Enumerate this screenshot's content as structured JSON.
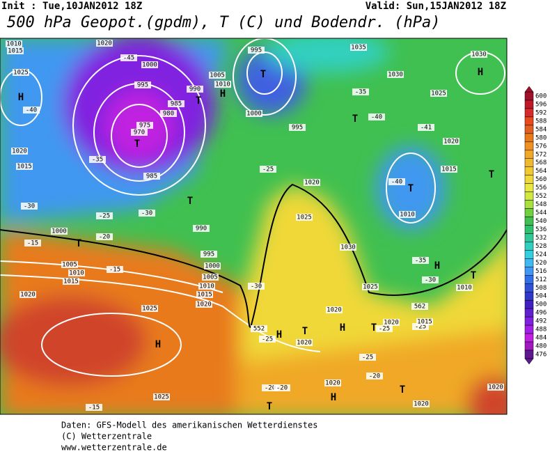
{
  "header": {
    "init": "Init : Tue,10JAN2012 18Z",
    "valid": "Valid: Sun,15JAN2012 18Z",
    "title": "500 hPa Geopot.(gpdm), T (C) und Bodendr. (hPa)"
  },
  "map_labels": [
    "1010",
    "1015",
    "1020",
    "1025",
    "H",
    "-40",
    "1000",
    "995",
    "-45",
    "975",
    "970",
    "T",
    "980",
    "985",
    "990",
    "T",
    "1005",
    "1010",
    "H",
    "995",
    "T",
    "1000",
    "995",
    "1035",
    "1030",
    "1025",
    "H",
    "1030",
    "-35",
    "T",
    "-40",
    "-41",
    "1020",
    "1015",
    "T",
    "T",
    "-40",
    "1010",
    "-25",
    "1020",
    "1025",
    "T",
    "990",
    "-30",
    "-25",
    "1020",
    "1015",
    "-30",
    "-35",
    "985",
    "-20",
    "-15",
    "1000",
    "T",
    "1005",
    "1010",
    "1015",
    "-15",
    "1020",
    "1025",
    "H",
    "995",
    "1000",
    "1005",
    "1010",
    "1015",
    "1020",
    "-30",
    "552",
    "H",
    "-25",
    "T",
    "1020",
    "H",
    "T",
    "1020",
    "-25",
    "1020",
    "-25",
    "1015",
    "1030",
    "H",
    "T",
    "1010",
    "-30",
    "-35",
    "1025",
    "562",
    "-25",
    "-20",
    "1020",
    "T",
    "1020",
    "1020",
    "H",
    "1025",
    "-15",
    "-20",
    "-20",
    "T"
  ],
  "legend": {
    "values": [
      600,
      596,
      592,
      588,
      584,
      580,
      576,
      572,
      568,
      564,
      560,
      556,
      552,
      548,
      544,
      540,
      536,
      532,
      528,
      524,
      520,
      516,
      512,
      508,
      504,
      500,
      496,
      492,
      488,
      484,
      480,
      476
    ],
    "colors": [
      "#a0102a",
      "#c0182a",
      "#d82a2a",
      "#e84a1e",
      "#e06020",
      "#e87a1a",
      "#f09020",
      "#f0a828",
      "#f0b830",
      "#f0c830",
      "#f0d838",
      "#e8e840",
      "#d0e840",
      "#a8e040",
      "#70d040",
      "#40c050",
      "#30c070",
      "#30c898",
      "#30d0c0",
      "#30d0e0",
      "#40b8f0",
      "#4098f0",
      "#3070e8",
      "#3050d8",
      "#3038c8",
      "#4020c0",
      "#6020d0",
      "#8020e0",
      "#a020e8",
      "#c020e0",
      "#a018c0",
      "#601890"
    ]
  },
  "footer": {
    "line1": "Daten: GFS-Modell des amerikanischen Wetterdienstes",
    "line2": "(C) Wetterzentrale",
    "line3": "www.wetterzentrale.de"
  }
}
